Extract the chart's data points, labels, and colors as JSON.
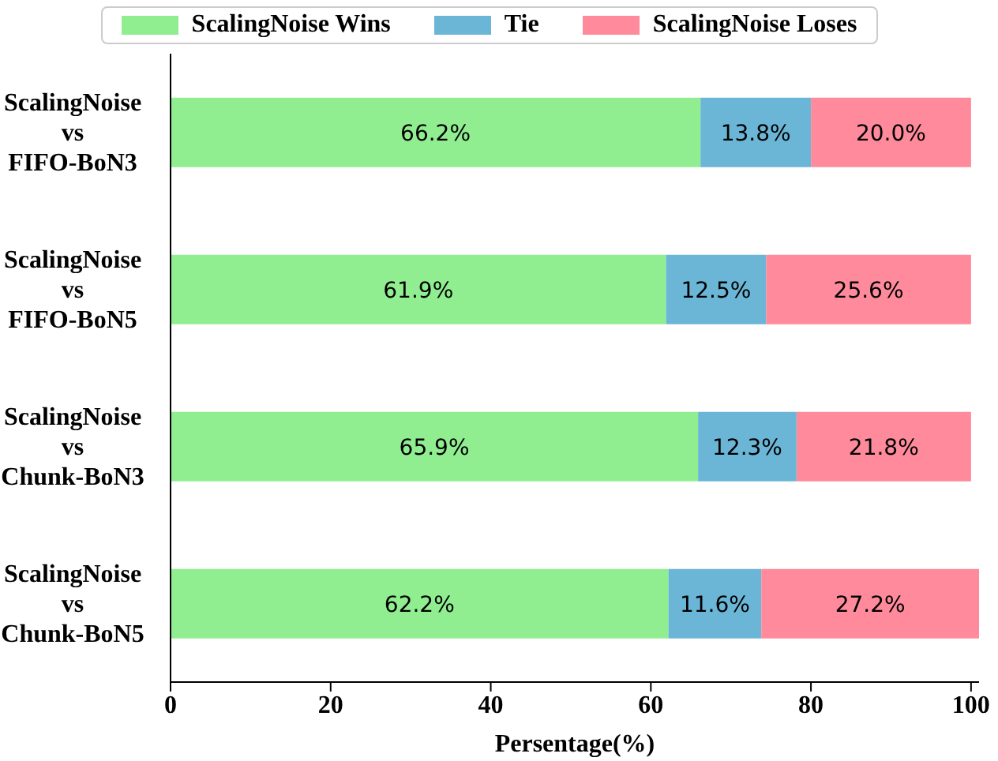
{
  "chart_data": {
    "type": "bar",
    "orientation": "horizontal",
    "stacked": true,
    "xlabel": "Persentage(%)",
    "categories": [
      "ScalingNoise vs FIFO-BoN3",
      "ScalingNoise vs FIFO-BoN5",
      "ScalingNoise vs Chunk-BoN3",
      "ScalingNoise vs Chunk-BoN5"
    ],
    "series": [
      {
        "name": "ScalingNoise Wins",
        "color": "#90ee90",
        "values": [
          66.2,
          61.9,
          65.9,
          62.2
        ],
        "value_labels": [
          "66.2%",
          "61.9%",
          "65.9%",
          "62.2%"
        ]
      },
      {
        "name": "Tie",
        "color": "#6bb6d6",
        "values": [
          13.8,
          12.5,
          12.3,
          11.6
        ],
        "value_labels": [
          "13.8%",
          "12.5%",
          "12.3%",
          "11.6%"
        ]
      },
      {
        "name": "ScalingNoise Loses",
        "color": "#fe8a9b",
        "values": [
          20.0,
          25.6,
          21.8,
          27.2
        ],
        "value_labels": [
          "20.0%",
          "25.6%",
          "21.8%",
          "27.2%"
        ]
      }
    ],
    "xlim": [
      0,
      101
    ],
    "xticks": [
      0,
      20,
      40,
      60,
      80,
      100
    ],
    "grid": false,
    "legend": "top"
  }
}
